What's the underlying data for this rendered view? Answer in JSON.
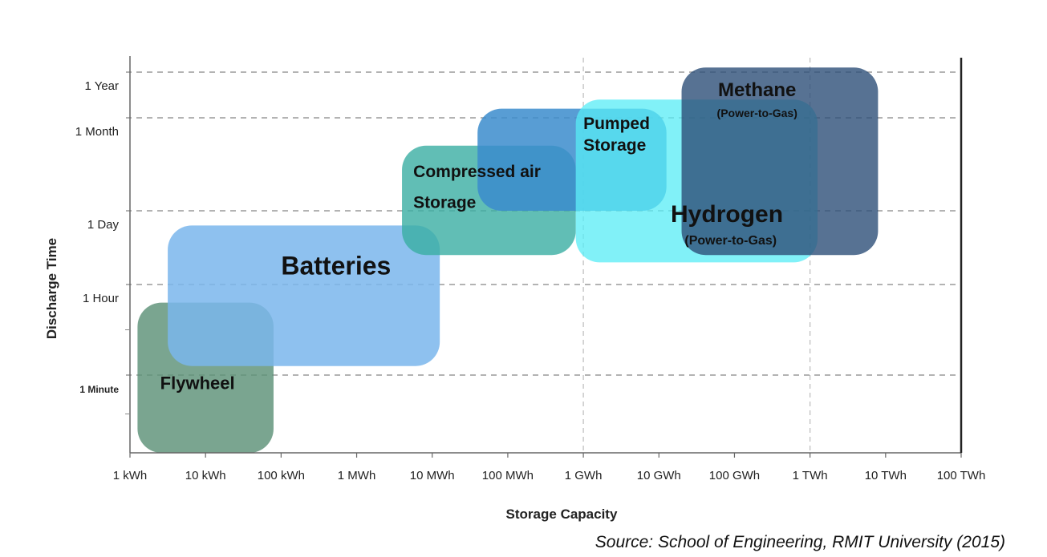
{
  "chart_data": {
    "type": "range-region",
    "xlabel": "Storage Capacity",
    "ylabel": "Discharge Time",
    "x_ticks": [
      "1 kWh",
      "10 kWh",
      "100 kWh",
      "1 MWh",
      "10 MWh",
      "100 MWh",
      "1 GWh",
      "10 GWh",
      "100 GWh",
      "1 TWh",
      "10 TWh",
      "100 TWh"
    ],
    "y_ticks": [
      {
        "label": "1 Minute",
        "level": 1
      },
      {
        "label": "1 Hour",
        "level": 2
      },
      {
        "label": "1 Day",
        "level": 3
      },
      {
        "label": "1 Month",
        "level": 4
      },
      {
        "label": "1 Year",
        "level": 5
      }
    ],
    "x_range": [
      0,
      11
    ],
    "y_range": [
      0,
      5
    ],
    "regions": [
      {
        "name": "Flywheel",
        "x_range": [
          0.1,
          1.9
        ],
        "y_range": [
          0.0,
          1.8
        ],
        "color": "#5d9178",
        "opacity": 0.82
      },
      {
        "name": "Batteries",
        "x_range": [
          0.5,
          4.1
        ],
        "y_range": [
          1.1,
          2.8
        ],
        "color": "#7ab6ec",
        "opacity": 0.85
      },
      {
        "name": "Compressed air Storage",
        "x_range": [
          3.6,
          5.9
        ],
        "y_range": [
          2.4,
          3.7
        ],
        "color": "#3aaea2",
        "opacity": 0.8
      },
      {
        "name": "Pumped Storage",
        "x_range": [
          4.6,
          7.1
        ],
        "y_range": [
          3.0,
          4.2
        ],
        "color": "#3b8ccd",
        "opacity": 0.85
      },
      {
        "name": "Hydrogen",
        "sublabel": "(Power-to-Gas)",
        "x_range": [
          5.9,
          9.1
        ],
        "y_range": [
          2.3,
          4.4
        ],
        "color": "#57ecf5",
        "opacity": 0.75
      },
      {
        "name": "Methane",
        "sublabel": "(Power-to-Gas)",
        "x_range": [
          7.3,
          9.9
        ],
        "y_range": [
          2.4,
          5.1
        ],
        "color": "#2d4f78",
        "opacity": 0.8
      }
    ]
  },
  "source": "Source: School of Engineering, RMIT University (2015)"
}
